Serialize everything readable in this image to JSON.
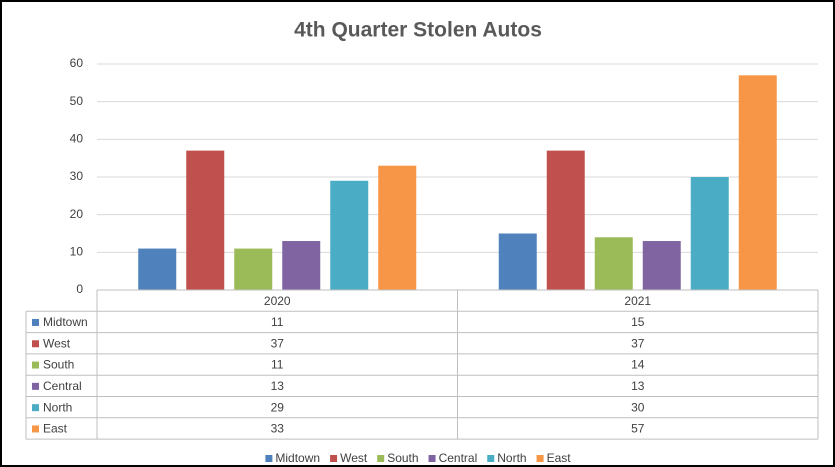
{
  "chart_data": {
    "type": "bar",
    "title": "4th Quarter Stolen Autos",
    "categories": [
      "2020",
      "2021"
    ],
    "series": [
      {
        "name": "Midtown",
        "color": "#4f81bd",
        "values": [
          11,
          15
        ]
      },
      {
        "name": "West",
        "color": "#c0504d",
        "values": [
          37,
          37
        ]
      },
      {
        "name": "South",
        "color": "#9bbb59",
        "values": [
          11,
          14
        ]
      },
      {
        "name": "Central",
        "color": "#8064a2",
        "values": [
          13,
          13
        ]
      },
      {
        "name": "North",
        "color": "#4bacc6",
        "values": [
          29,
          30
        ]
      },
      {
        "name": "East",
        "color": "#f79646",
        "values": [
          33,
          57
        ]
      }
    ],
    "ylim": [
      0,
      60
    ],
    "yticks": [
      0,
      10,
      20,
      30,
      40,
      50,
      60
    ],
    "grid": true,
    "legend": "bottom"
  }
}
